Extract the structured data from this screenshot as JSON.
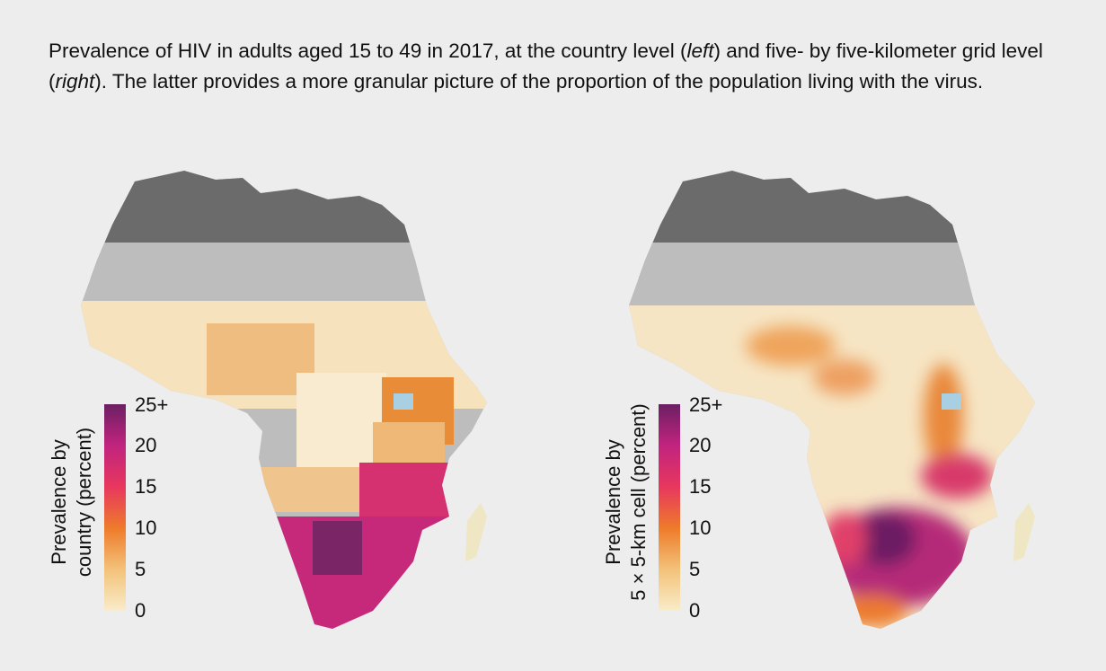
{
  "caption": {
    "part1": "Prevalence of HIV in adults aged 15 to 49 in 2017, at the country level (",
    "left_word": "left",
    "part2": ") and five- by five-kilometer grid level (",
    "right_word": "right",
    "part3": "). The latter provides a more granular picture of the proportion of the population living with the virus."
  },
  "maps": [
    {
      "id": "country",
      "legend_title_line1": "Prevalence by",
      "legend_title_line2": "country (percent)",
      "ticks": [
        "25+",
        "20",
        "15",
        "10",
        "5",
        "0"
      ]
    },
    {
      "id": "grid",
      "legend_title_line1": "Prevalence by",
      "legend_title_line2": "5 × 5-km cell (percent)",
      "ticks": [
        "25+",
        "20",
        "15",
        "10",
        "5",
        "0"
      ]
    }
  ],
  "colors": {
    "no_data_dark": "#6b6b6b",
    "no_data_light": "#bdbdbd",
    "low": "#f3dfb0",
    "mid": "#ee8a34",
    "high": "#cf2f6e",
    "very_high": "#6c1f63",
    "water": "#a9cfe3"
  }
}
